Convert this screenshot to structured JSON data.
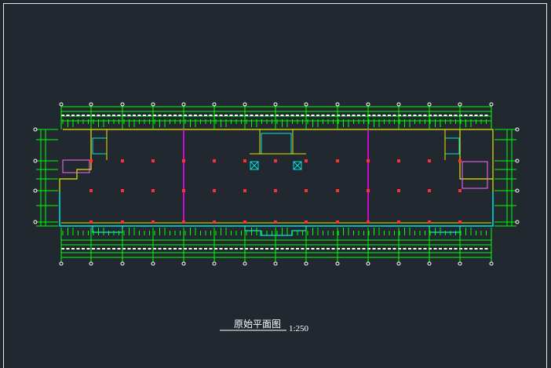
{
  "drawing": {
    "title": "原始平面图",
    "scale": "1:250"
  }
}
